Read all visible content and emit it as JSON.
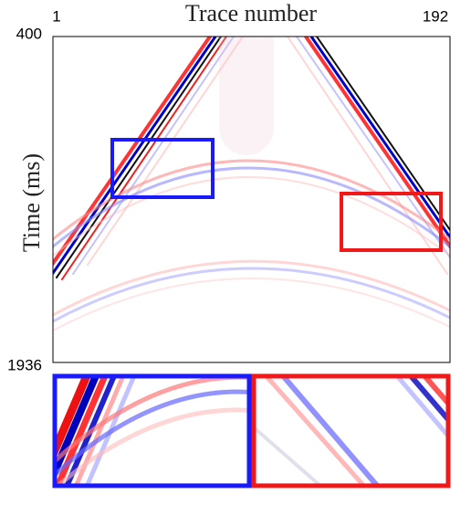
{
  "chart_data": {
    "type": "seismic",
    "title": "Trace number",
    "ylabel": "Time (ms)",
    "xlim": [
      1,
      192
    ],
    "xticks": [
      1,
      192
    ],
    "ylim": [
      400,
      1936
    ],
    "yticks": [
      400,
      1936
    ]
  }
}
